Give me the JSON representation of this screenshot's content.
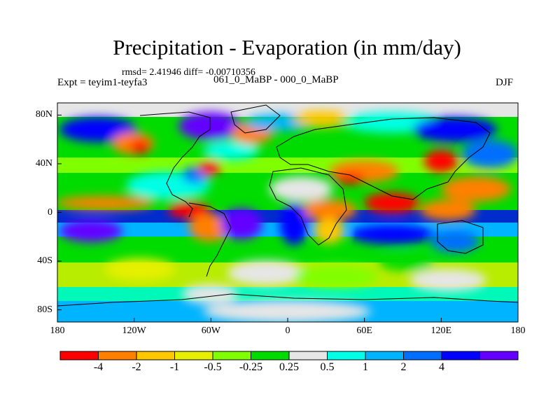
{
  "title": "Precipitation - Evaporation (in mm/day)",
  "stats": "rmsd= 2.41946 diff= -0.00710356",
  "experiment": "Expt = teyim1-teyfa3",
  "period": "061_0_MaBP - 000_0_MaBP",
  "season": "DJF",
  "x_axis": {
    "ticks": [
      "180",
      "120W",
      "60W",
      "0",
      "60E",
      "120E",
      "180"
    ],
    "lon": [
      -180,
      -120,
      -60,
      0,
      60,
      120,
      180
    ]
  },
  "y_axis": {
    "ticks": [
      "80N",
      "40N",
      "0",
      "40S",
      "80S"
    ],
    "lat": [
      80,
      40,
      0,
      -40,
      -80
    ]
  },
  "colorbar": {
    "colors": [
      "#ff0000",
      "#ff8000",
      "#ffc800",
      "#e6f000",
      "#80ff00",
      "#00dc00",
      "#e6e6e6",
      "#00ffe6",
      "#00b4ff",
      "#006eff",
      "#0000ff",
      "#6400ff"
    ],
    "labels": [
      "-4",
      "-2",
      "-1",
      "-0.5",
      "-0.25",
      "0.25",
      "0.5",
      "1",
      "2",
      "4"
    ]
  }
}
